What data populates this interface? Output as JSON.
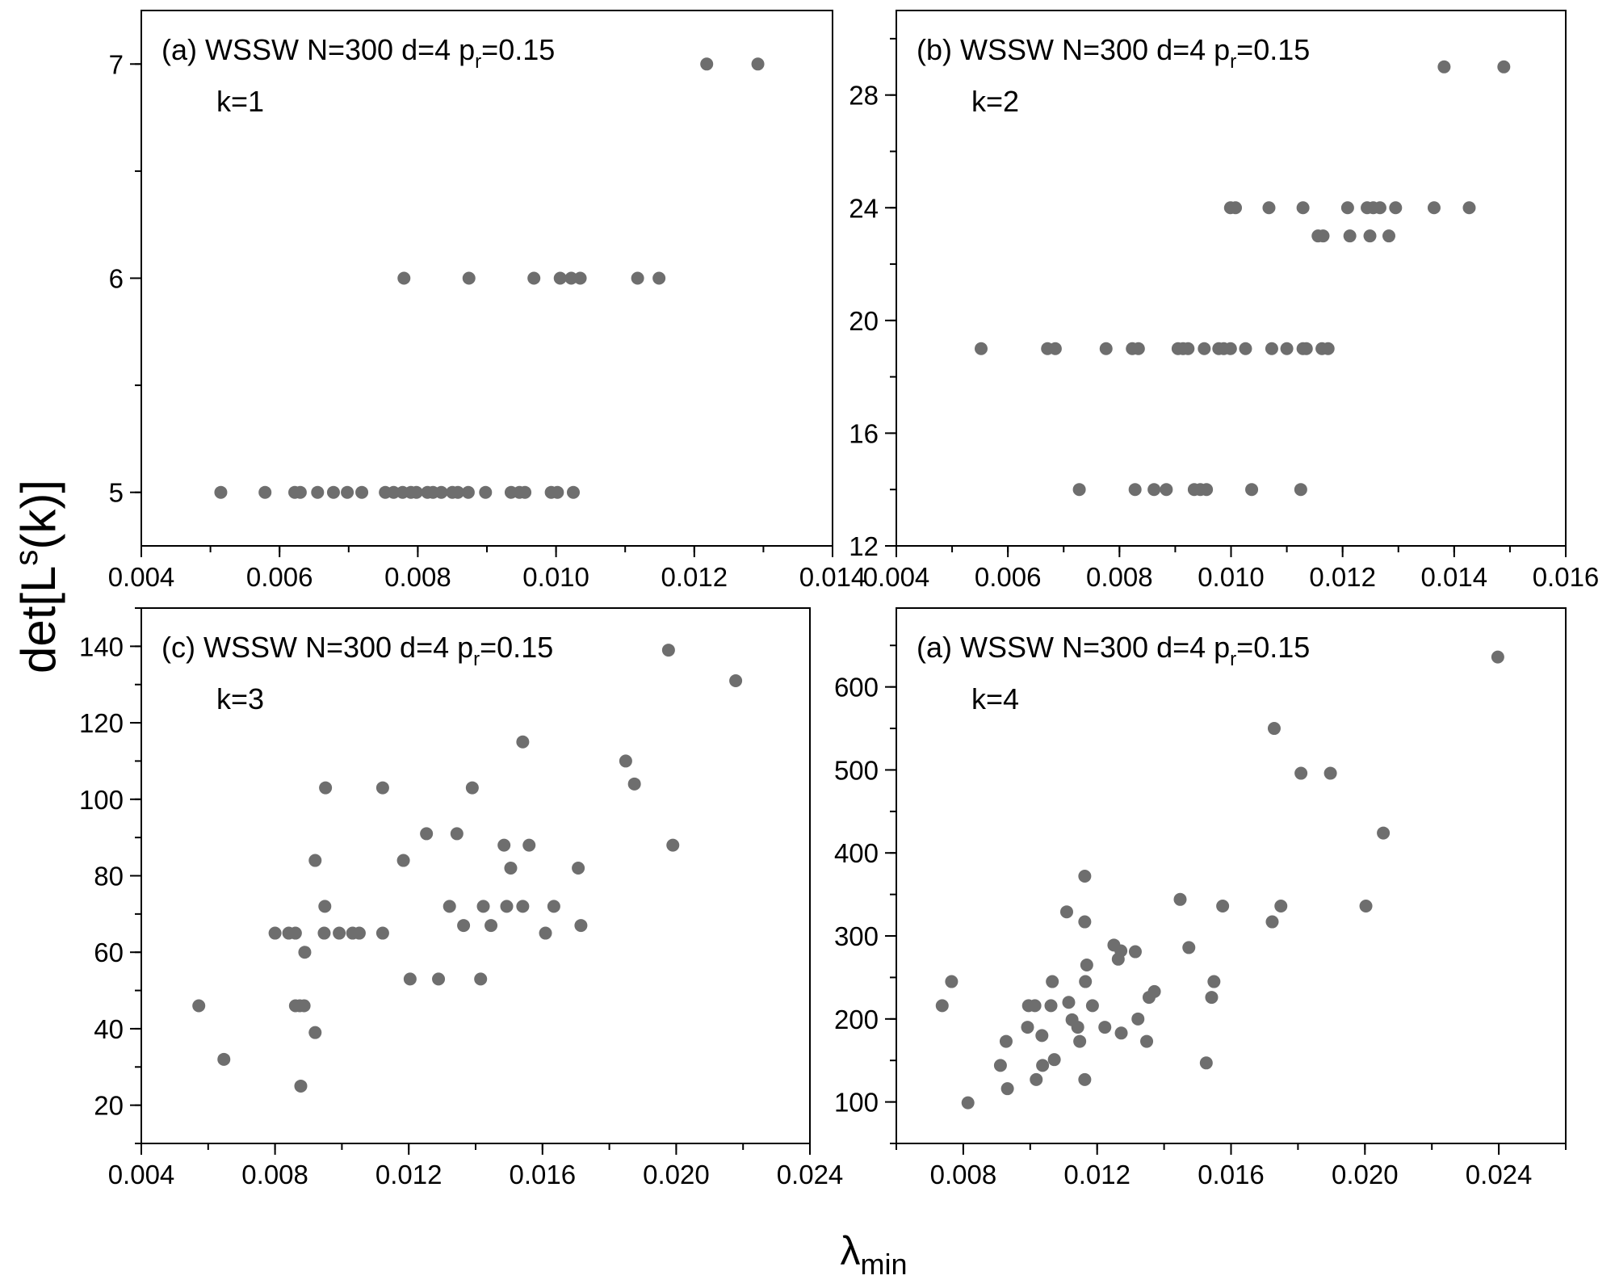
{
  "colors": {
    "marker": "#6e6e6e",
    "axis": "#000000"
  },
  "chart_data": {
    "type": "scatter",
    "ylabel": {
      "main": "det[L",
      "sup": "s",
      "tail": "(k)]"
    },
    "xlabel": {
      "main": "λ",
      "sub": "min"
    },
    "panels": [
      {
        "id": "a",
        "title": {
          "pre": "(a) WSSW N=300 d=4 p",
          "sub": "r",
          "post": "=0.15"
        },
        "k_label": "k=1",
        "xlim": [
          0.004,
          0.014
        ],
        "ylim": [
          4.75,
          7.25
        ],
        "xticks": [
          0.004,
          0.006,
          0.008,
          0.01,
          0.012,
          0.014
        ],
        "xtick_labels": [
          "0.004",
          "0.006",
          "0.008",
          "0.010",
          "0.012",
          "0.014"
        ],
        "xminor": 0.001,
        "yticks": [
          5,
          6,
          7
        ],
        "ytick_labels": [
          "5",
          "6",
          "7"
        ],
        "yminor": 0.5,
        "points": [
          [
            0.00515,
            5
          ],
          [
            0.00579,
            5
          ],
          [
            0.00622,
            5
          ],
          [
            0.0063,
            5
          ],
          [
            0.00655,
            5
          ],
          [
            0.00678,
            5
          ],
          [
            0.00698,
            5
          ],
          [
            0.00719,
            5
          ],
          [
            0.00753,
            5
          ],
          [
            0.00765,
            5
          ],
          [
            0.00778,
            5
          ],
          [
            0.0079,
            5
          ],
          [
            0.00798,
            5
          ],
          [
            0.00814,
            5
          ],
          [
            0.00822,
            5
          ],
          [
            0.00834,
            5
          ],
          [
            0.0085,
            5
          ],
          [
            0.00858,
            5
          ],
          [
            0.00873,
            5
          ],
          [
            0.00898,
            5
          ],
          [
            0.00935,
            5
          ],
          [
            0.00947,
            5
          ],
          [
            0.00955,
            5
          ],
          [
            0.00993,
            5
          ],
          [
            0.01002,
            5
          ],
          [
            0.01025,
            5
          ],
          [
            0.0078,
            6
          ],
          [
            0.00874,
            6
          ],
          [
            0.00968,
            6
          ],
          [
            0.01006,
            6
          ],
          [
            0.01022,
            6
          ],
          [
            0.01035,
            6
          ],
          [
            0.01118,
            6
          ],
          [
            0.01149,
            6
          ],
          [
            0.01218,
            7
          ],
          [
            0.01292,
            7
          ]
        ]
      },
      {
        "id": "b",
        "title": {
          "pre": "(b) WSSW N=300 d=4 p",
          "sub": "r",
          "post": "=0.15"
        },
        "k_label": "k=2",
        "xlim": [
          0.004,
          0.016
        ],
        "ylim": [
          12,
          31
        ],
        "xticks": [
          0.004,
          0.006,
          0.008,
          0.01,
          0.012,
          0.014,
          0.016
        ],
        "xtick_labels": [
          "0.004",
          "0.006",
          "0.008",
          "0.010",
          "0.012",
          "0.014",
          "0.016"
        ],
        "xminor": 0.001,
        "yticks": [
          12,
          16,
          20,
          24,
          28
        ],
        "ytick_labels": [
          "12",
          "16",
          "20",
          "24",
          "28"
        ],
        "yminor": 2,
        "points": [
          [
            0.01382,
            29
          ],
          [
            0.01489,
            29
          ],
          [
            0.00999,
            24
          ],
          [
            0.01008,
            24
          ],
          [
            0.01068,
            24
          ],
          [
            0.01129,
            24
          ],
          [
            0.01209,
            24
          ],
          [
            0.01244,
            24
          ],
          [
            0.01255,
            24
          ],
          [
            0.01267,
            24
          ],
          [
            0.01295,
            24
          ],
          [
            0.01364,
            24
          ],
          [
            0.01427,
            24
          ],
          [
            0.01156,
            23
          ],
          [
            0.01165,
            23
          ],
          [
            0.01213,
            23
          ],
          [
            0.01249,
            23
          ],
          [
            0.01283,
            23
          ],
          [
            0.00552,
            19
          ],
          [
            0.00671,
            19
          ],
          [
            0.00685,
            19
          ],
          [
            0.00776,
            19
          ],
          [
            0.00823,
            19
          ],
          [
            0.00834,
            19
          ],
          [
            0.00905,
            19
          ],
          [
            0.00914,
            19
          ],
          [
            0.00923,
            19
          ],
          [
            0.00952,
            19
          ],
          [
            0.00978,
            19
          ],
          [
            0.00987,
            19
          ],
          [
            0.00999,
            19
          ],
          [
            0.01026,
            19
          ],
          [
            0.01073,
            19
          ],
          [
            0.011,
            19
          ],
          [
            0.01129,
            19
          ],
          [
            0.01135,
            19
          ],
          [
            0.01163,
            19
          ],
          [
            0.01174,
            19
          ],
          [
            0.00728,
            14
          ],
          [
            0.00828,
            14
          ],
          [
            0.00862,
            14
          ],
          [
            0.00884,
            14
          ],
          [
            0.00934,
            14
          ],
          [
            0.00945,
            14
          ],
          [
            0.00956,
            14
          ],
          [
            0.01037,
            14
          ],
          [
            0.01125,
            14
          ]
        ]
      },
      {
        "id": "c",
        "title": {
          "pre": "(c) WSSW N=300 d=4 p",
          "sub": "r",
          "post": "=0.15"
        },
        "k_label": "k=3",
        "xlim": [
          0.004,
          0.024
        ],
        "ylim": [
          10,
          150
        ],
        "xticks": [
          0.004,
          0.008,
          0.012,
          0.016,
          0.02,
          0.024
        ],
        "xtick_labels": [
          "0.004",
          "0.008",
          "0.012",
          "0.016",
          "0.020",
          "0.024"
        ],
        "xminor": 0.002,
        "yticks": [
          20,
          40,
          60,
          80,
          100,
          120,
          140
        ],
        "ytick_labels": [
          "20",
          "40",
          "60",
          "80",
          "100",
          "120",
          "140"
        ],
        "yminor": 10,
        "points": [
          [
            0.00572,
            46
          ],
          [
            0.00647,
            32
          ],
          [
            0.00877,
            25
          ],
          [
            0.0092,
            39
          ],
          [
            0.00861,
            46
          ],
          [
            0.00874,
            46
          ],
          [
            0.00887,
            46
          ],
          [
            0.00889,
            60
          ],
          [
            0.008,
            65
          ],
          [
            0.00841,
            65
          ],
          [
            0.00861,
            65
          ],
          [
            0.0092,
            84
          ],
          [
            0.00949,
            72
          ],
          [
            0.00947,
            65
          ],
          [
            0.00992,
            65
          ],
          [
            0.01032,
            65
          ],
          [
            0.01052,
            65
          ],
          [
            0.00951,
            103
          ],
          [
            0.01122,
            103
          ],
          [
            0.01122,
            65
          ],
          [
            0.01184,
            84
          ],
          [
            0.01204,
            53
          ],
          [
            0.01253,
            91
          ],
          [
            0.01289,
            53
          ],
          [
            0.01322,
            72
          ],
          [
            0.01344,
            91
          ],
          [
            0.01364,
            67
          ],
          [
            0.0139,
            103
          ],
          [
            0.01415,
            53
          ],
          [
            0.01423,
            72
          ],
          [
            0.01446,
            67
          ],
          [
            0.01485,
            88
          ],
          [
            0.01493,
            72
          ],
          [
            0.01505,
            82
          ],
          [
            0.01541,
            115
          ],
          [
            0.01541,
            72
          ],
          [
            0.0156,
            88
          ],
          [
            0.01609,
            65
          ],
          [
            0.01634,
            72
          ],
          [
            0.01707,
            82
          ],
          [
            0.01715,
            67
          ],
          [
            0.01849,
            110
          ],
          [
            0.01875,
            104
          ],
          [
            0.01977,
            139
          ],
          [
            0.0199,
            88
          ],
          [
            0.02178,
            131
          ]
        ]
      },
      {
        "id": "d",
        "title": {
          "pre": "(a) WSSW N=300 d=4 p",
          "sub": "r",
          "post": "=0.15"
        },
        "k_label": "k=4",
        "xlim": [
          0.006,
          0.026
        ],
        "ylim": [
          50,
          695
        ],
        "xticks": [
          0.008,
          0.012,
          0.016,
          0.02,
          0.024
        ],
        "xtick_labels": [
          "0.008",
          "0.012",
          "0.016",
          "0.020",
          "0.024"
        ],
        "xminor": 0.002,
        "yticks": [
          100,
          200,
          300,
          400,
          500,
          600
        ],
        "ytick_labels": [
          "100",
          "200",
          "300",
          "400",
          "500",
          "600"
        ],
        "yminor": 50,
        "points": [
          [
            0.00737,
            216
          ],
          [
            0.00765,
            245
          ],
          [
            0.00814,
            99
          ],
          [
            0.00911,
            144
          ],
          [
            0.00928,
            173
          ],
          [
            0.00932,
            116
          ],
          [
            0.00992,
            190
          ],
          [
            0.00995,
            216
          ],
          [
            0.01014,
            216
          ],
          [
            0.01018,
            127
          ],
          [
            0.01035,
            180
          ],
          [
            0.01037,
            144
          ],
          [
            0.01062,
            216
          ],
          [
            0.01066,
            245
          ],
          [
            0.01072,
            151
          ],
          [
            0.01109,
            329
          ],
          [
            0.01115,
            220
          ],
          [
            0.01125,
            199
          ],
          [
            0.01142,
            190
          ],
          [
            0.01148,
            173
          ],
          [
            0.01163,
            372
          ],
          [
            0.01163,
            317
          ],
          [
            0.01163,
            127
          ],
          [
            0.01165,
            245
          ],
          [
            0.01169,
            265
          ],
          [
            0.01186,
            216
          ],
          [
            0.01223,
            190
          ],
          [
            0.0125,
            289
          ],
          [
            0.01263,
            272
          ],
          [
            0.01271,
            282
          ],
          [
            0.01272,
            183
          ],
          [
            0.01314,
            281
          ],
          [
            0.01322,
            200
          ],
          [
            0.01348,
            173
          ],
          [
            0.01355,
            226
          ],
          [
            0.01371,
            233
          ],
          [
            0.01448,
            344
          ],
          [
            0.01474,
            286
          ],
          [
            0.01526,
            147
          ],
          [
            0.01542,
            226
          ],
          [
            0.01549,
            245
          ],
          [
            0.01575,
            336
          ],
          [
            0.01723,
            317
          ],
          [
            0.01729,
            550
          ],
          [
            0.01749,
            336
          ],
          [
            0.01809,
            496
          ],
          [
            0.01897,
            496
          ],
          [
            0.02003,
            336
          ],
          [
            0.02055,
            424
          ],
          [
            0.02397,
            636
          ]
        ]
      }
    ]
  }
}
